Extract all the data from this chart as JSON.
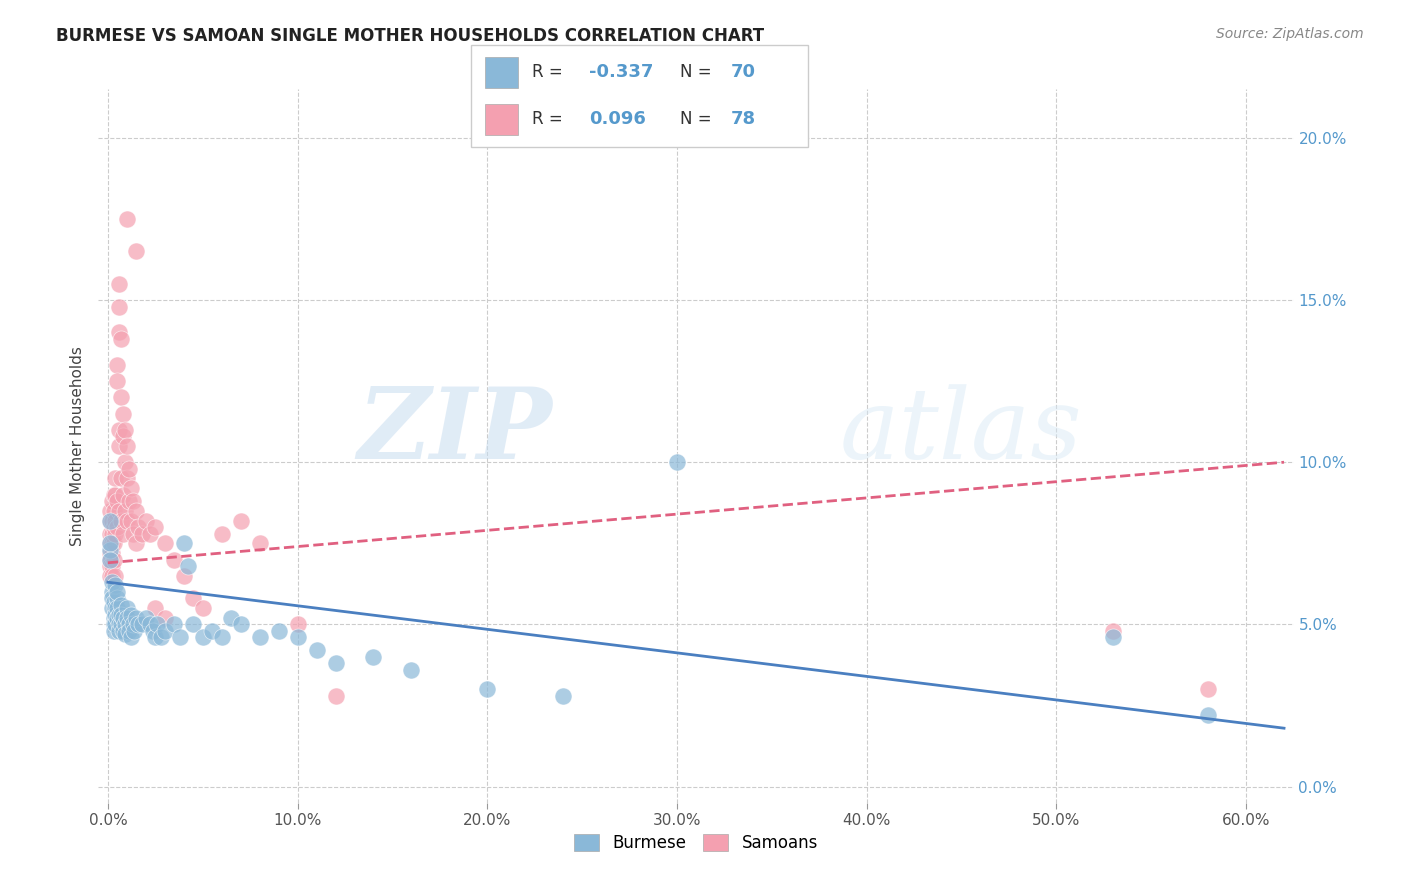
{
  "title": "BURMESE VS SAMOAN SINGLE MOTHER HOUSEHOLDS CORRELATION CHART",
  "source": "Source: ZipAtlas.com",
  "ylabel_label": "Single Mother Households",
  "x_ticks": [
    0.0,
    0.1,
    0.2,
    0.3,
    0.4,
    0.5,
    0.6
  ],
  "x_tick_labels": [
    "0.0%",
    "10.0%",
    "20.0%",
    "30.0%",
    "40.0%",
    "50.0%",
    "60.0%"
  ],
  "y_ticks": [
    0.0,
    0.05,
    0.1,
    0.15,
    0.2
  ],
  "y_tick_labels": [
    "0.0%",
    "5.0%",
    "10.0%",
    "15.0%",
    "20.0%"
  ],
  "xlim": [
    -0.005,
    0.625
  ],
  "ylim": [
    -0.005,
    0.215
  ],
  "burmese_color": "#8ab8d8",
  "samoan_color": "#f4a0b0",
  "burmese_line_color": "#4a7fc0",
  "samoan_line_color": "#e06080",
  "burmese_R": -0.337,
  "burmese_N": 70,
  "samoan_R": 0.096,
  "samoan_N": 78,
  "watermark_zip": "ZIP",
  "watermark_atlas": "atlas",
  "background_color": "#ffffff",
  "grid_color": "#cccccc",
  "right_tick_color": "#5599cc",
  "burmese_line_x0": 0.0,
  "burmese_line_x1": 0.62,
  "burmese_line_y0": 0.063,
  "burmese_line_y1": 0.018,
  "samoan_line_x0": 0.0,
  "samoan_line_x1": 0.62,
  "samoan_line_y0": 0.069,
  "samoan_line_y1": 0.1,
  "burmese_scatter": [
    [
      0.001,
      0.082
    ],
    [
      0.001,
      0.073
    ],
    [
      0.001,
      0.075
    ],
    [
      0.001,
      0.07
    ],
    [
      0.002,
      0.06
    ],
    [
      0.002,
      0.063
    ],
    [
      0.002,
      0.058
    ],
    [
      0.002,
      0.055
    ],
    [
      0.003,
      0.057
    ],
    [
      0.003,
      0.052
    ],
    [
      0.003,
      0.05
    ],
    [
      0.003,
      0.048
    ],
    [
      0.004,
      0.055
    ],
    [
      0.004,
      0.053
    ],
    [
      0.004,
      0.05
    ],
    [
      0.004,
      0.062
    ],
    [
      0.005,
      0.058
    ],
    [
      0.005,
      0.055
    ],
    [
      0.005,
      0.052
    ],
    [
      0.005,
      0.06
    ],
    [
      0.006,
      0.053
    ],
    [
      0.006,
      0.05
    ],
    [
      0.006,
      0.048
    ],
    [
      0.007,
      0.056
    ],
    [
      0.007,
      0.05
    ],
    [
      0.007,
      0.053
    ],
    [
      0.008,
      0.052
    ],
    [
      0.008,
      0.048
    ],
    [
      0.009,
      0.05
    ],
    [
      0.009,
      0.047
    ],
    [
      0.01,
      0.055
    ],
    [
      0.01,
      0.052
    ],
    [
      0.011,
      0.05
    ],
    [
      0.011,
      0.048
    ],
    [
      0.012,
      0.053
    ],
    [
      0.012,
      0.046
    ],
    [
      0.013,
      0.05
    ],
    [
      0.014,
      0.048
    ],
    [
      0.015,
      0.052
    ],
    [
      0.016,
      0.05
    ],
    [
      0.018,
      0.05
    ],
    [
      0.02,
      0.052
    ],
    [
      0.022,
      0.05
    ],
    [
      0.024,
      0.048
    ],
    [
      0.025,
      0.046
    ],
    [
      0.026,
      0.05
    ],
    [
      0.028,
      0.046
    ],
    [
      0.03,
      0.048
    ],
    [
      0.035,
      0.05
    ],
    [
      0.038,
      0.046
    ],
    [
      0.04,
      0.075
    ],
    [
      0.042,
      0.068
    ],
    [
      0.045,
      0.05
    ],
    [
      0.05,
      0.046
    ],
    [
      0.055,
      0.048
    ],
    [
      0.06,
      0.046
    ],
    [
      0.065,
      0.052
    ],
    [
      0.07,
      0.05
    ],
    [
      0.08,
      0.046
    ],
    [
      0.09,
      0.048
    ],
    [
      0.1,
      0.046
    ],
    [
      0.11,
      0.042
    ],
    [
      0.12,
      0.038
    ],
    [
      0.14,
      0.04
    ],
    [
      0.16,
      0.036
    ],
    [
      0.2,
      0.03
    ],
    [
      0.24,
      0.028
    ],
    [
      0.3,
      0.1
    ],
    [
      0.53,
      0.046
    ],
    [
      0.58,
      0.022
    ]
  ],
  "samoan_scatter": [
    [
      0.001,
      0.072
    ],
    [
      0.001,
      0.075
    ],
    [
      0.001,
      0.082
    ],
    [
      0.001,
      0.085
    ],
    [
      0.001,
      0.07
    ],
    [
      0.001,
      0.078
    ],
    [
      0.001,
      0.068
    ],
    [
      0.001,
      0.065
    ],
    [
      0.002,
      0.082
    ],
    [
      0.002,
      0.078
    ],
    [
      0.002,
      0.075
    ],
    [
      0.002,
      0.088
    ],
    [
      0.002,
      0.072
    ],
    [
      0.002,
      0.068
    ],
    [
      0.002,
      0.065
    ],
    [
      0.003,
      0.085
    ],
    [
      0.003,
      0.08
    ],
    [
      0.003,
      0.09
    ],
    [
      0.003,
      0.075
    ],
    [
      0.003,
      0.07
    ],
    [
      0.004,
      0.082
    ],
    [
      0.004,
      0.078
    ],
    [
      0.004,
      0.09
    ],
    [
      0.004,
      0.095
    ],
    [
      0.004,
      0.065
    ],
    [
      0.005,
      0.13
    ],
    [
      0.005,
      0.125
    ],
    [
      0.005,
      0.088
    ],
    [
      0.005,
      0.08
    ],
    [
      0.006,
      0.155
    ],
    [
      0.006,
      0.148
    ],
    [
      0.006,
      0.14
    ],
    [
      0.006,
      0.11
    ],
    [
      0.006,
      0.105
    ],
    [
      0.006,
      0.085
    ],
    [
      0.007,
      0.138
    ],
    [
      0.007,
      0.12
    ],
    [
      0.007,
      0.095
    ],
    [
      0.007,
      0.082
    ],
    [
      0.008,
      0.115
    ],
    [
      0.008,
      0.108
    ],
    [
      0.008,
      0.09
    ],
    [
      0.008,
      0.078
    ],
    [
      0.009,
      0.11
    ],
    [
      0.009,
      0.1
    ],
    [
      0.009,
      0.085
    ],
    [
      0.01,
      0.105
    ],
    [
      0.01,
      0.095
    ],
    [
      0.01,
      0.082
    ],
    [
      0.01,
      0.175
    ],
    [
      0.011,
      0.098
    ],
    [
      0.011,
      0.088
    ],
    [
      0.012,
      0.092
    ],
    [
      0.012,
      0.082
    ],
    [
      0.013,
      0.088
    ],
    [
      0.013,
      0.078
    ],
    [
      0.015,
      0.085
    ],
    [
      0.015,
      0.075
    ],
    [
      0.015,
      0.165
    ],
    [
      0.016,
      0.08
    ],
    [
      0.018,
      0.078
    ],
    [
      0.02,
      0.082
    ],
    [
      0.022,
      0.078
    ],
    [
      0.025,
      0.08
    ],
    [
      0.025,
      0.055
    ],
    [
      0.03,
      0.075
    ],
    [
      0.03,
      0.052
    ],
    [
      0.035,
      0.07
    ],
    [
      0.04,
      0.065
    ],
    [
      0.045,
      0.058
    ],
    [
      0.05,
      0.055
    ],
    [
      0.06,
      0.078
    ],
    [
      0.07,
      0.082
    ],
    [
      0.08,
      0.075
    ],
    [
      0.1,
      0.05
    ],
    [
      0.12,
      0.028
    ],
    [
      0.53,
      0.048
    ],
    [
      0.58,
      0.03
    ]
  ]
}
